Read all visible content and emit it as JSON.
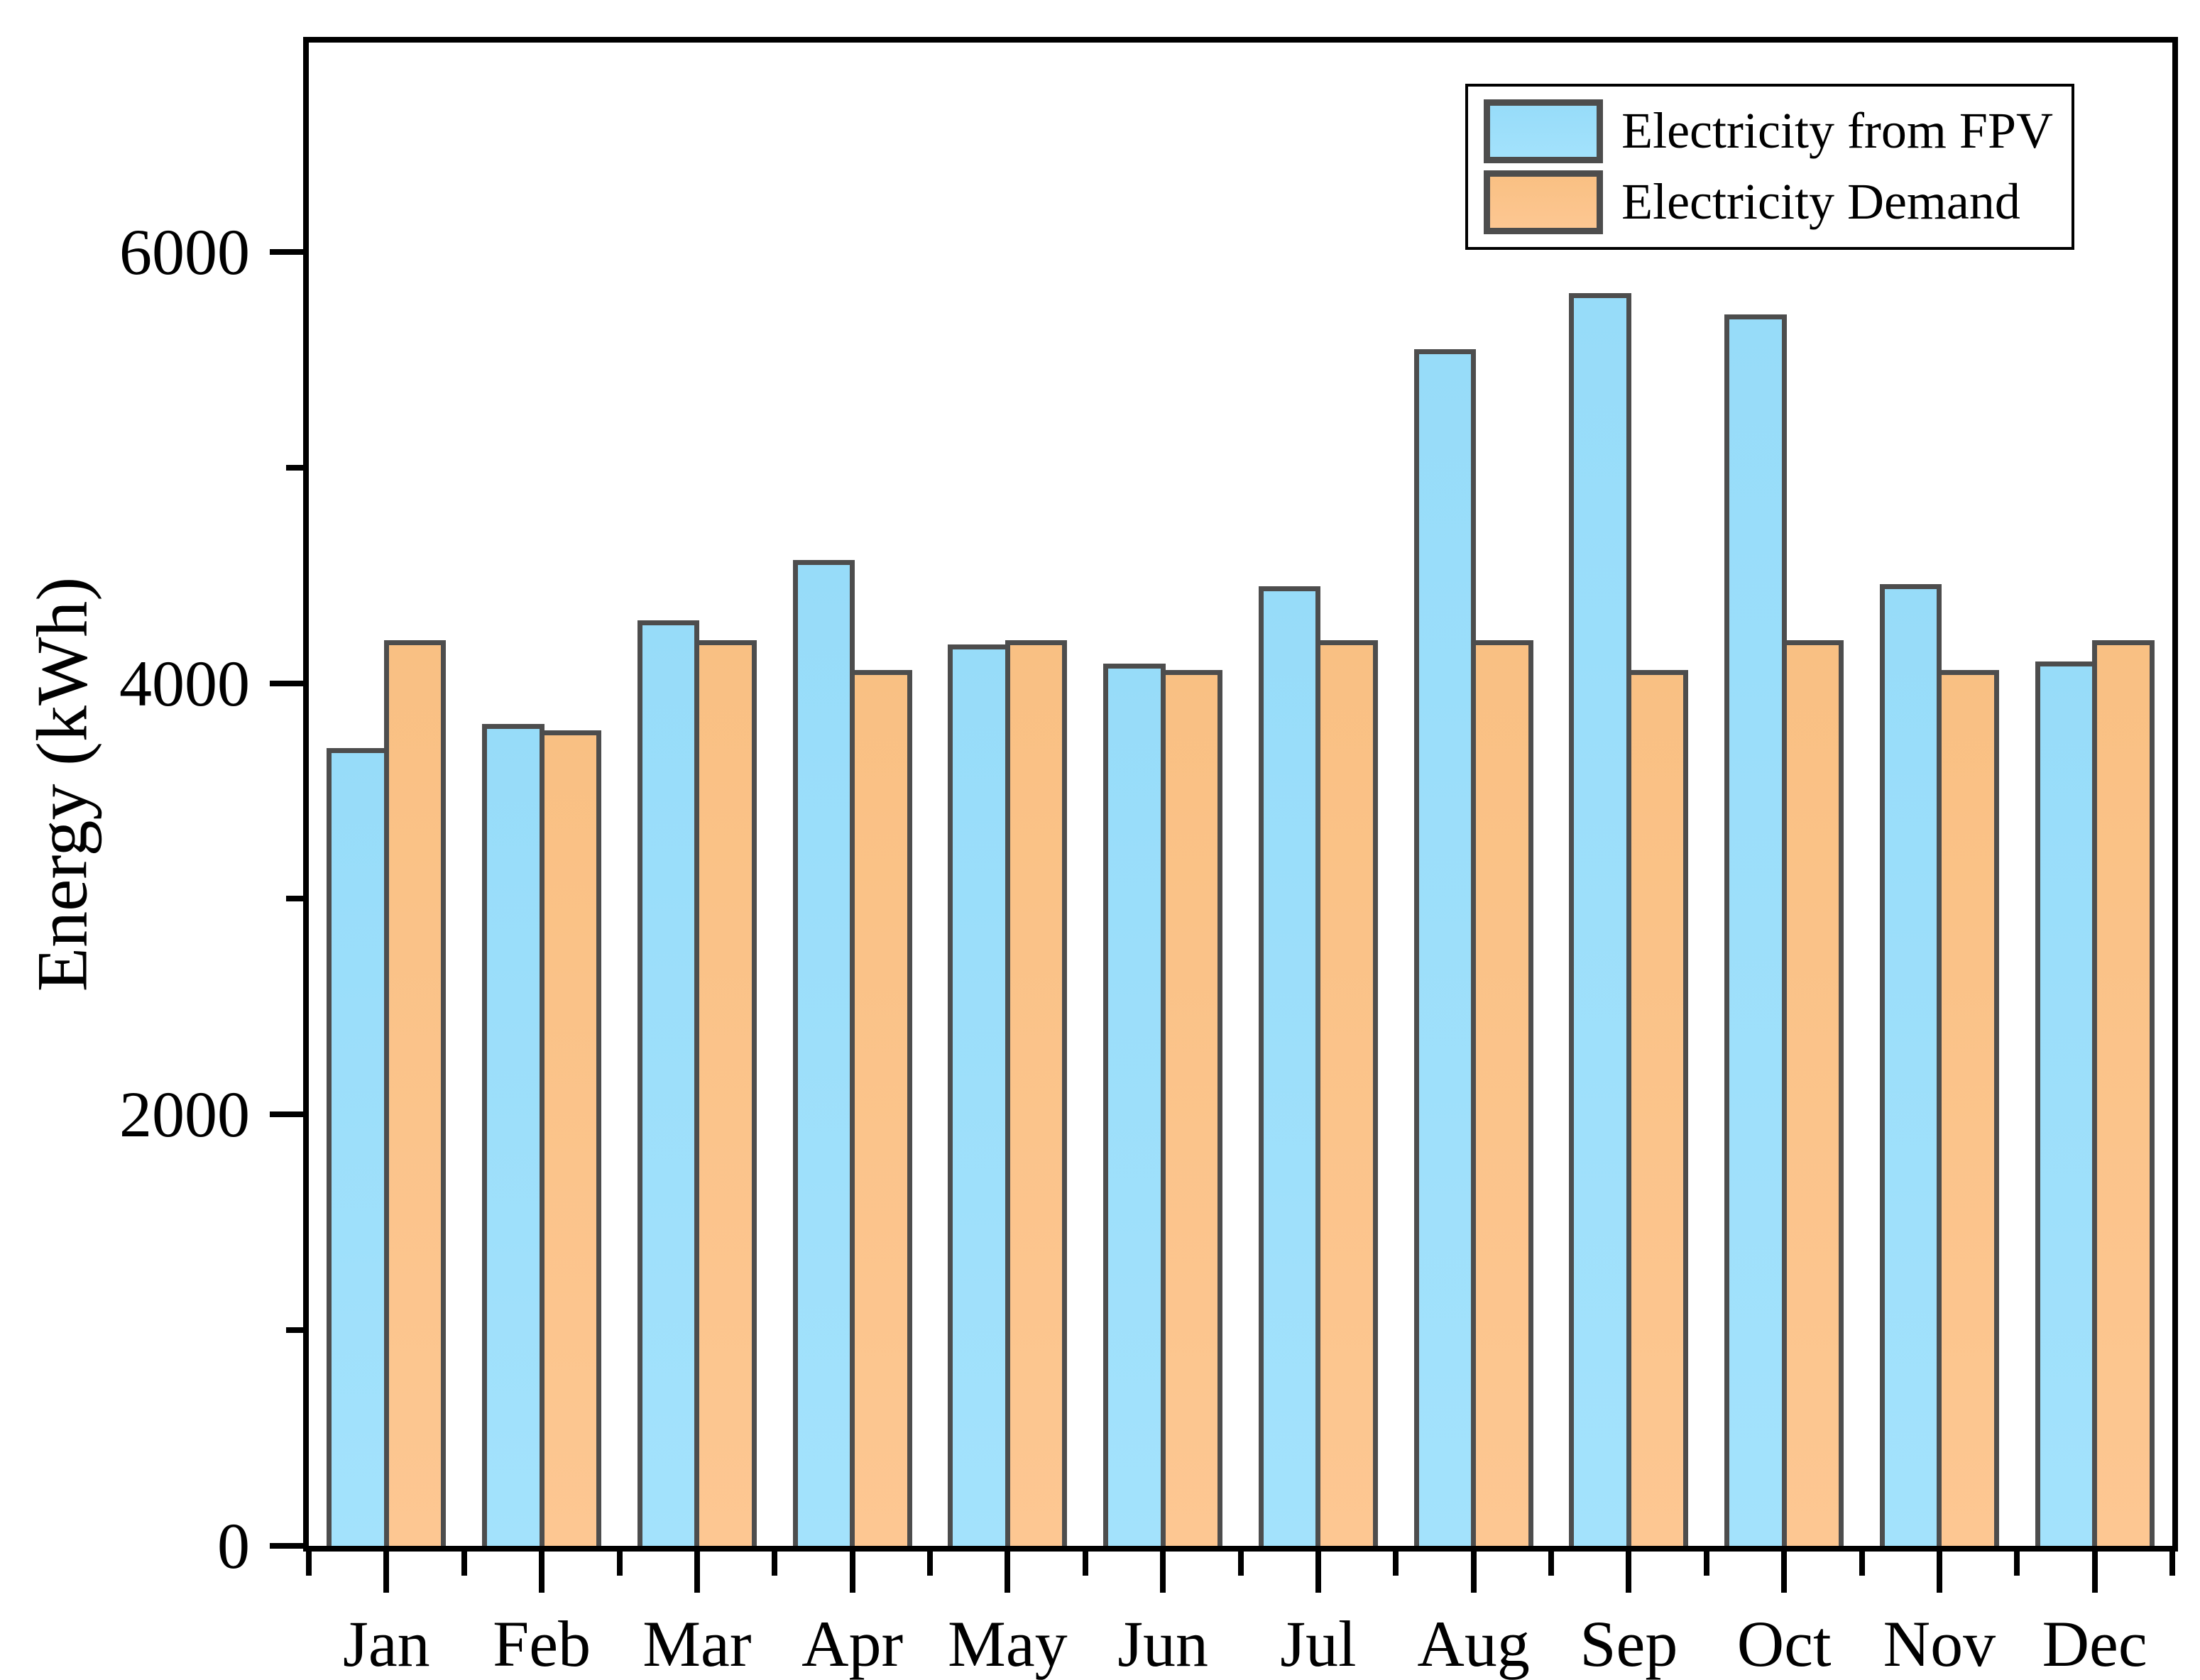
{
  "chart_data": {
    "type": "bar",
    "title": "",
    "xlabel": "",
    "ylabel": "Energy (kWh)",
    "categories": [
      "Jan",
      "Feb",
      "Mar",
      "Apr",
      "May",
      "Jun",
      "Jul",
      "Aug",
      "Sep",
      "Oct",
      "Nov",
      "Dec"
    ],
    "series": [
      {
        "name": "Electricity from FPV",
        "color": "#a3e2fc",
        "color_top": "#97dcf9",
        "values": [
          3700,
          3810,
          4290,
          4570,
          4180,
          4090,
          4450,
          5550,
          5810,
          5710,
          4460,
          4100
        ]
      },
      {
        "name": "Electricity Demand",
        "color": "#fdc792",
        "color_top": "#f9c083",
        "values": [
          4200,
          3780,
          4200,
          4060,
          4200,
          4060,
          4200,
          4200,
          4060,
          4200,
          4060,
          4200
        ]
      }
    ],
    "ylim": [
      0,
      6970
    ],
    "yticks_major": [
      0,
      2000,
      4000,
      6000
    ],
    "yticks_minor": [
      1000,
      3000,
      5000
    ],
    "grid": false,
    "legend_position": "top-right-inside",
    "bar_border_color": "#4d4d4d",
    "axis_color": "#000000"
  }
}
